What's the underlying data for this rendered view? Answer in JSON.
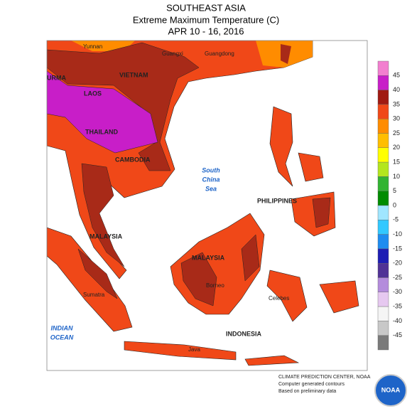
{
  "header": {
    "title": "SOUTHEAST ASIA",
    "subtitle": "Extreme Maximum Temperature (C)",
    "dates": "APR 10 - 16, 2016"
  },
  "places": [
    "Yunnan",
    "Guangxi",
    "Guangdong",
    "URMA",
    "VIETNAM",
    "LAOS",
    "THAILAND",
    "CAMBODIA",
    "PHILIPPINES",
    "MALAYSIA",
    "MALAYSIA",
    "Borneo",
    "Sumatra",
    "Celebes",
    "INDONESIA",
    "Java"
  ],
  "seas": [
    [
      "South",
      "China",
      "Sea"
    ],
    [
      "INDIAN",
      "OCEAN"
    ]
  ],
  "legend": {
    "labels": [
      45,
      40,
      35,
      30,
      25,
      20,
      15,
      10,
      5,
      0,
      -5,
      -10,
      -15,
      -20,
      -25,
      -30,
      -35,
      -40,
      -45
    ],
    "colors": [
      "#f27fcf",
      "#c81ec8",
      "#a01a12",
      "#f04818",
      "#ff8c00",
      "#ffbe00",
      "#ffff00",
      "#b4e61e",
      "#32b432",
      "#008c00",
      "#a0e6ff",
      "#32c8ff",
      "#1e8cf0",
      "#1e1eb4",
      "#503296",
      "#b48cdc",
      "#e6c8f0",
      "#f5f5f5",
      "#c8c8c8",
      "#7a7a7a"
    ]
  },
  "footer": {
    "lines": [
      "CLIMATE PREDICTION CENTER, NOAA",
      "Computer generated contours",
      "Based on preliminary data"
    ],
    "logo": "NOAA"
  }
}
